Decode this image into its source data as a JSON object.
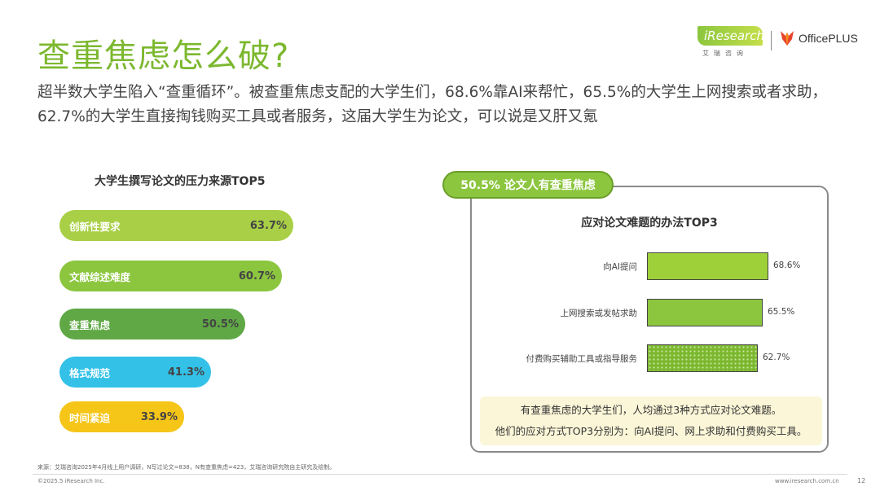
{
  "header": {
    "title": "查重焦虑怎么破?",
    "subtitle": "超半数大学生陷入“查重循环”。被查重焦虑支配的大学生们，68.6%靠AI来帮忙，65.5%的大学生上网搜索或者求助，62.7%的大学生直接掏钱购买工具或者服务，这届大学生为论文，可以说是又肝又氪"
  },
  "logos": {
    "iresearch": "iResearch",
    "iresearch_cn": "艾瑞咨询",
    "officeplus": "OfficePLUS"
  },
  "chart_data": [
    {
      "type": "bar",
      "orientation": "horizontal",
      "title": "大学生撰写论文的压力来源TOP5",
      "categories": [
        "创新性要求",
        "文献综述难度",
        "查重焦虑",
        "格式规范",
        "时间紧迫"
      ],
      "values": [
        "63.7%",
        "60.7%",
        "50.5%",
        "41.3%",
        "33.9%"
      ],
      "numeric_values": [
        63.7,
        60.7,
        50.5,
        41.3,
        33.9
      ],
      "colors": [
        "#a8cf45",
        "#8cc63f",
        "#5fa845",
        "#33c1e8",
        "#f5c518"
      ]
    },
    {
      "type": "bar",
      "orientation": "horizontal",
      "badge": "50.5% 论文人有查重焦虑",
      "title": "应对论文难题的办法TOP3",
      "categories": [
        "向AI提问",
        "上网搜索或发帖求助",
        "付费购买辅助工具或指导服务"
      ],
      "values": [
        "68.6%",
        "65.5%",
        "62.7%"
      ],
      "numeric_values": [
        68.6,
        65.5,
        62.7
      ],
      "colors": [
        "#9ed03a",
        "#8cc63f",
        "#7cb82f"
      ]
    }
  ],
  "note": {
    "line1": "有查重焦虑的大学生们，人均通过3种方式应对论文难题。",
    "line2": "他们的应对方式TOP3分别为：向AI提问、网上求助和付费购买工具。"
  },
  "footer": {
    "source": "来源：艾瑞咨询2025年4月线上用户调研，N写过论文=838，N有查重焦虑=423，艾瑞咨询研究院自主研究及绘制。",
    "copyright": "©2025.5 iResearch Inc.",
    "website": "www.iresearch.com.cn",
    "page": "12"
  }
}
